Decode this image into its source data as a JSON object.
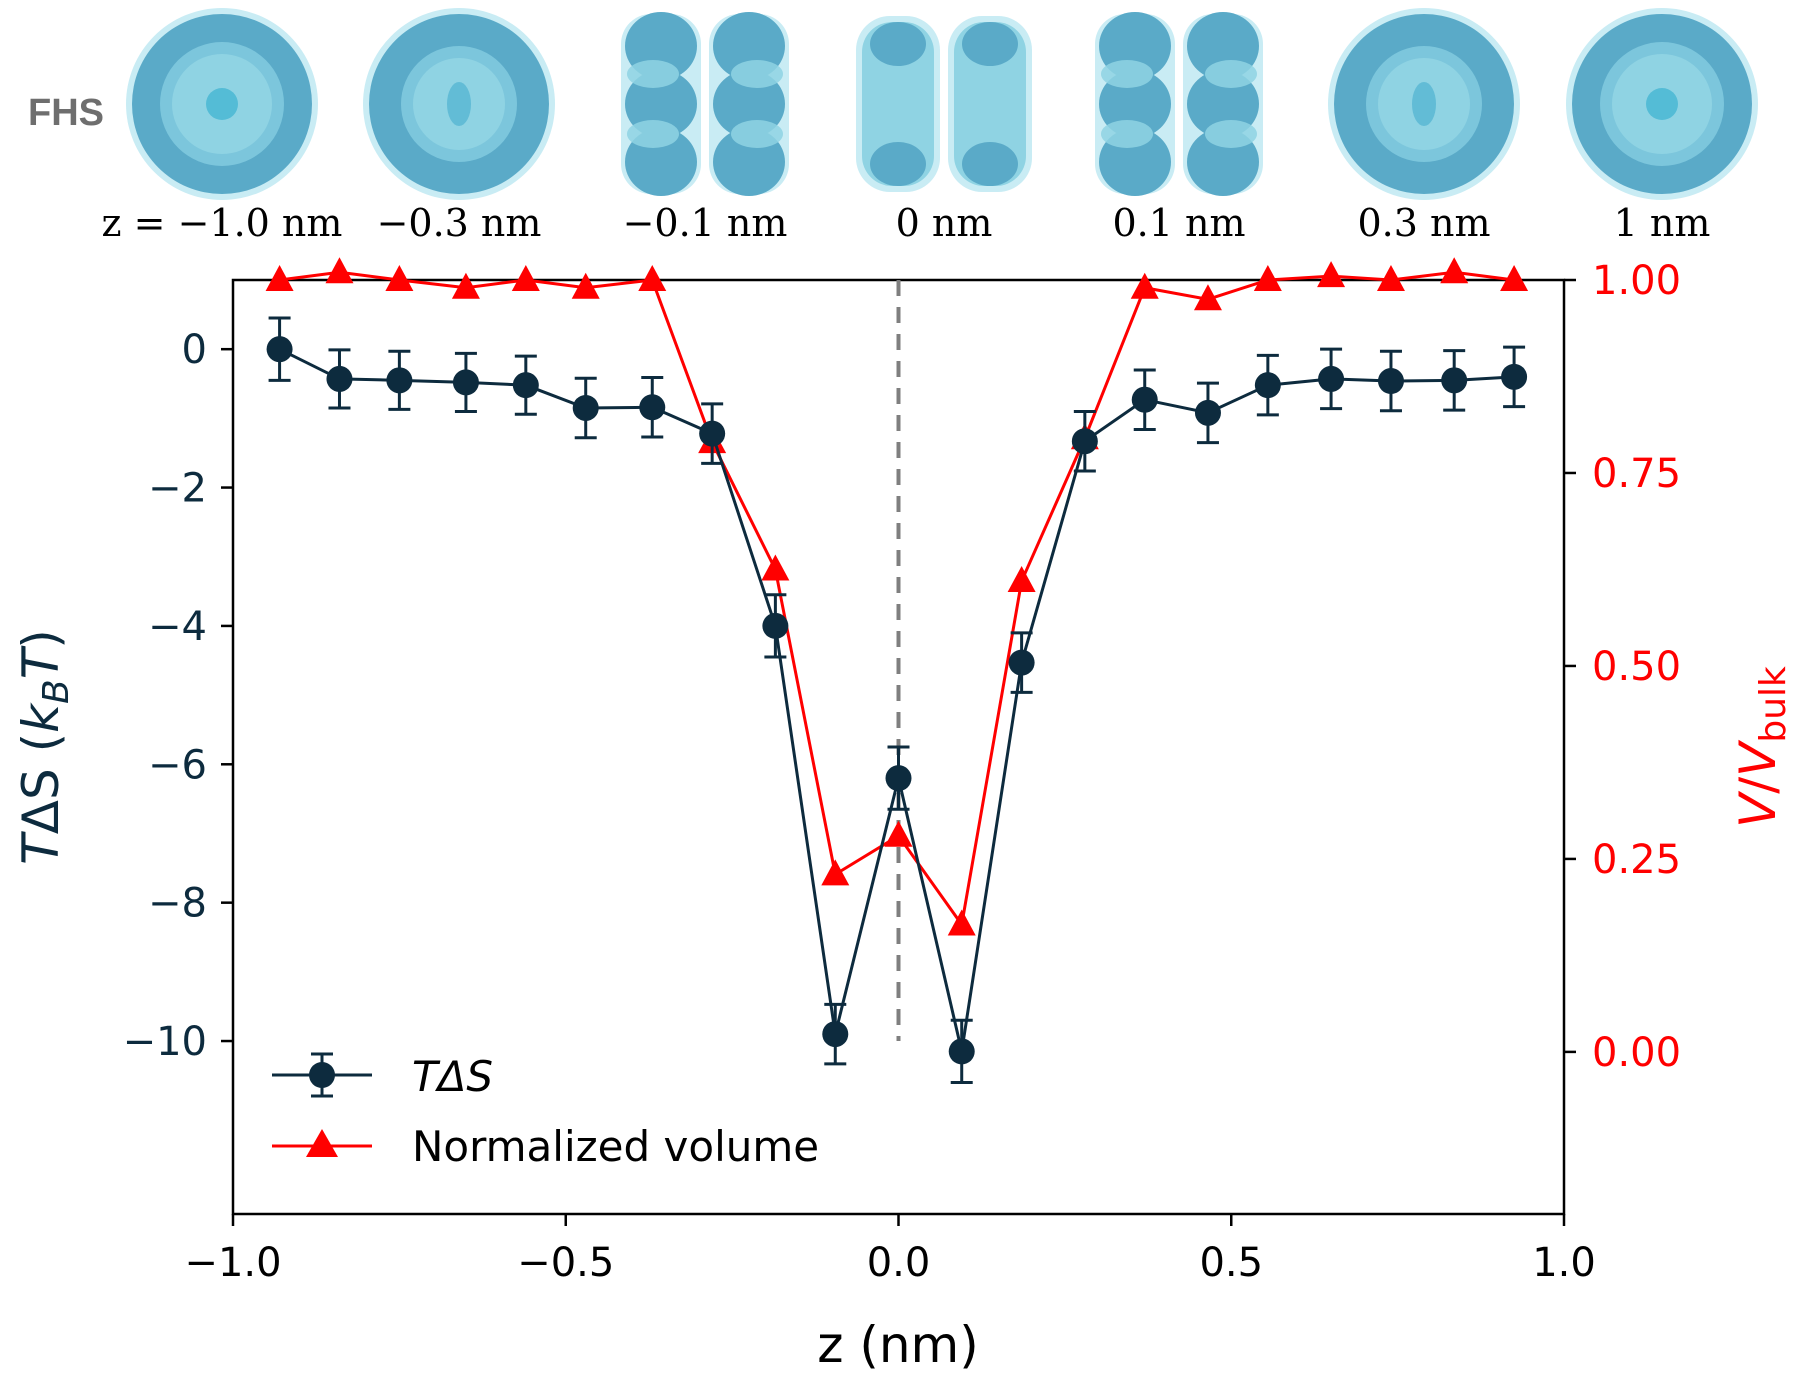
{
  "colors": {
    "left_series": "#0d2b3e",
    "right_series": "#ff0000",
    "shape_dark": "#5aaac8",
    "shape_light": "#8fd3e3",
    "shape_halo": "#c9ecf4",
    "label_gray": "#6e6e6e",
    "divider": "#7f7f7f"
  },
  "top_panel": {
    "row_label": "FHS",
    "slices": [
      {
        "label": "z = −1.0 nm",
        "shape": "ring"
      },
      {
        "label": "−0.3 nm",
        "shape": "ring-narrow"
      },
      {
        "label": "−0.1 nm",
        "shape": "split-lobes"
      },
      {
        "label": "0 nm",
        "shape": "split-hollow"
      },
      {
        "label": "0.1 nm",
        "shape": "split-lobes"
      },
      {
        "label": "0.3 nm",
        "shape": "ring-narrow"
      },
      {
        "label": "1 nm",
        "shape": "ring"
      }
    ]
  },
  "chart_data": {
    "type": "line",
    "xlabel": "z (nm)",
    "ylabel_left": "TΔS (k_B T)",
    "ylabel_right": "V/V_bulk",
    "xlim": [
      -1.0,
      1.0
    ],
    "ylim_left": [
      -12.5,
      1.0
    ],
    "ylim_right": [
      -0.21,
      1.0
    ],
    "x_ticks": [
      -1.0,
      -0.5,
      0.0,
      0.5,
      1.0
    ],
    "x_tick_labels": [
      "−1.0",
      "−0.5",
      "0.0",
      "0.5",
      "1.0"
    ],
    "y_left_ticks": [
      0,
      -2,
      -4,
      -6,
      -8,
      -10
    ],
    "y_left_tick_labels": [
      "0",
      "−2",
      "−4",
      "−6",
      "−8",
      "−10"
    ],
    "y_right_ticks": [
      1.0,
      0.75,
      0.5,
      0.25,
      0.0
    ],
    "y_right_tick_labels": [
      "1.00",
      "0.75",
      "0.50",
      "0.25",
      "0.00"
    ],
    "vline_x": 0.0,
    "vline_style": "dashed",
    "legend_position": "lower-left",
    "x": [
      -0.93,
      -0.84,
      -0.75,
      -0.65,
      -0.56,
      -0.47,
      -0.37,
      -0.28,
      -0.185,
      -0.095,
      0.0,
      0.095,
      0.185,
      0.28,
      0.37,
      0.465,
      0.555,
      0.65,
      0.74,
      0.835,
      0.925
    ],
    "series": [
      {
        "name": "TΔS",
        "axis": "left",
        "marker": "circle",
        "values": [
          0.0,
          -0.43,
          -0.45,
          -0.48,
          -0.52,
          -0.85,
          -0.84,
          -1.22,
          -4.0,
          -9.9,
          -6.2,
          -10.15,
          -4.53,
          -1.33,
          -0.73,
          -0.92,
          -0.52,
          -0.43,
          -0.46,
          -0.45,
          -0.4
        ],
        "errors": [
          0.45,
          0.42,
          0.42,
          0.42,
          0.42,
          0.43,
          0.43,
          0.43,
          0.45,
          0.43,
          0.45,
          0.45,
          0.43,
          0.43,
          0.43,
          0.43,
          0.43,
          0.43,
          0.43,
          0.43,
          0.43
        ]
      },
      {
        "name": "Normalized volume",
        "axis": "right",
        "marker": "triangle",
        "values": [
          1.0,
          1.01,
          1.0,
          0.99,
          1.0,
          0.99,
          1.0,
          0.79,
          0.625,
          0.23,
          0.28,
          0.165,
          0.61,
          0.795,
          0.99,
          0.975,
          1.0,
          1.005,
          1.0,
          1.01,
          1.0
        ]
      }
    ]
  }
}
